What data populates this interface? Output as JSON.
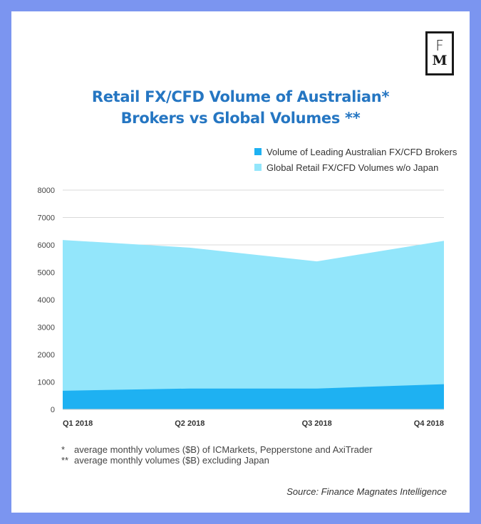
{
  "logo": {
    "letter_top": "F",
    "letter_bottom": "M"
  },
  "chart_data": {
    "type": "area",
    "title_line1": "Retail FX/CFD Volume of Australian*",
    "title_line2": "Brokers vs Global Volumes **",
    "categories": [
      "Q1 2018",
      "Q2 2018",
      "Q3 2018",
      "Q4 2018"
    ],
    "series": [
      {
        "name": "Volume of Leading Australian FX/CFD Brokers",
        "values": [
          680,
          760,
          760,
          920
        ],
        "color": "#1eb1f2"
      },
      {
        "name": "Global Retail FX/CFD Volumes w/o Japan",
        "values": [
          6180,
          5900,
          5400,
          6150
        ],
        "color": "#93e6fb"
      }
    ],
    "ylim": [
      0,
      8000
    ],
    "yticks": [
      0,
      1000,
      2000,
      3000,
      4000,
      5000,
      6000,
      7000,
      8000
    ],
    "grid": true,
    "legend_position": "top-right"
  },
  "notes": [
    {
      "mark": "*",
      "text": "average monthly volumes ($B) of ICMarkets, Pepperstone and AxiTrader"
    },
    {
      "mark": "**",
      "text": "average monthly volumes ($B) excluding Japan"
    }
  ],
  "source": "Source: Finance Magnates Intelligence"
}
